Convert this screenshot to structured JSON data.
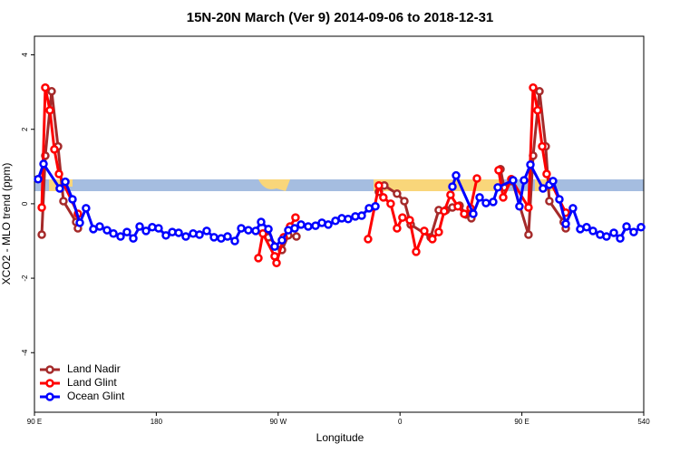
{
  "chart_data": {
    "type": "line",
    "title": "15N-20N March (Ver 9)   2014-09-06 to 2018-12-31",
    "x_label": "Longitude",
    "y_label": "XCO2 - MLO trend (ppm)",
    "xlim": [
      90,
      540
    ],
    "xticks": [
      {
        "value": 90,
        "label": "90 E"
      },
      180,
      {
        "value": 270,
        "label": "90 W"
      },
      {
        "value": 360,
        "label": "0"
      },
      {
        "value": 450,
        "label": "90 E"
      },
      540
    ],
    "ylim": [
      -5.6,
      4.5
    ],
    "yticks": [
      -4,
      -2,
      0,
      2,
      4
    ],
    "legend": "bottom-left",
    "series": [
      {
        "name": "Land Nadir",
        "color": "#a52a2a",
        "x": [
          95.4,
          98.0,
          102.7,
          107.4,
          111.4,
          120.8,
          122.1,
          null,
          262.8,
          272.8,
          277.5,
          283.5,
          null,
          344.4,
          348.4,
          357.8,
          363.2,
          367.9,
          382.6,
          388.6,
          394.0,
          398.7,
          404.0,
          408.7,
          412.7,
          null,
          434.2,
          436.8,
          442.9,
          454.9,
          458.3,
          463.0,
          467.6,
          470.3,
          480.9,
          482.4
        ],
        "values": [
          -0.83,
          1.29,
          3.02,
          1.54,
          0.07,
          -0.49,
          -0.66,
          null,
          -0.9,
          -1.24,
          -0.85,
          -0.88,
          null,
          0.32,
          0.49,
          0.27,
          0.07,
          -0.56,
          -0.9,
          -0.17,
          -0.17,
          -0.1,
          -0.05,
          -0.29,
          -0.39,
          null,
          0.93,
          0.44,
          0.61,
          -0.83,
          1.29,
          3.02,
          1.54,
          0.07,
          -0.49,
          -0.66
        ]
      },
      {
        "name": "Land Glint",
        "color": "#ff0000",
        "x": [
          95.4,
          98.0,
          101.4,
          104.7,
          108.1,
          122.1,
          null,
          255.4,
          258.7,
          267.4,
          268.8,
          274.1,
          278.8,
          282.8,
          null,
          336.4,
          344.4,
          347.7,
          353.1,
          357.8,
          361.8,
          367.2,
          371.9,
          377.9,
          383.9,
          388.6,
          392.6,
          397.3,
          402.7,
          407.4,
          412.1,
          416.8,
          null,
          432.8,
          436.2,
          442.2,
          454.9,
          458.3,
          461.6,
          465.0,
          468.3,
          482.4
        ],
        "values": [
          -0.1,
          3.12,
          2.51,
          1.46,
          0.8,
          -0.27,
          null,
          -1.46,
          -0.8,
          -1.41,
          -1.59,
          -0.9,
          -0.61,
          -0.37,
          null,
          -0.95,
          0.49,
          0.17,
          0,
          -0.66,
          -0.37,
          -0.44,
          -1.29,
          -0.73,
          -0.95,
          -0.76,
          -0.2,
          0.24,
          -0.07,
          -0.27,
          -0.12,
          0.68,
          null,
          0.9,
          0.17,
          0.66,
          -0.1,
          3.12,
          2.51,
          1.54,
          0.8,
          -0.24
        ]
      },
      {
        "name": "Ocean Glint",
        "color": "#0000ff",
        "x": [
          92.7,
          96.7,
          108.7,
          112.8,
          118.1,
          123.5,
          128.1,
          133.5,
          138.2,
          143.6,
          148.3,
          153.6,
          158.3,
          163.0,
          167.7,
          172.4,
          177.0,
          181.7,
          187.1,
          191.8,
          196.5,
          201.8,
          207.2,
          211.9,
          217.2,
          222.6,
          227.9,
          232.6,
          238.0,
          242.7,
          248.0,
          253.4,
          257.4,
          262.8,
          267.4,
          272.8,
          277.5,
          282.2,
          286.9,
          292.2,
          297.6,
          302.3,
          307.0,
          312.3,
          317.0,
          321.7,
          327.0,
          331.7,
          337.1,
          341.8,
          null,
          398.7,
          401.4,
          414.1,
          418.8,
          423.5,
          428.8,
          432.2,
          443.5,
          448.2,
          451.6,
          456.3,
          465.6,
          470.3,
          473.0,
          477.7,
          482.4,
          487.7,
          493.1,
          497.8,
          502.5,
          507.8,
          512.5,
          517.9,
          522.6,
          527.3,
          532.6,
          538.0
        ],
        "values": [
          0.66,
          1.07,
          0.41,
          0.59,
          0.12,
          -0.51,
          -0.12,
          -0.68,
          -0.61,
          -0.71,
          -0.8,
          -0.88,
          -0.76,
          -0.93,
          -0.61,
          -0.73,
          -0.63,
          -0.66,
          -0.85,
          -0.76,
          -0.78,
          -0.88,
          -0.8,
          -0.83,
          -0.73,
          -0.9,
          -0.93,
          -0.88,
          -1.0,
          -0.66,
          -0.71,
          -0.73,
          -0.49,
          -0.68,
          -1.15,
          -0.98,
          -0.71,
          -0.66,
          -0.56,
          -0.61,
          -0.59,
          -0.51,
          -0.56,
          -0.46,
          -0.39,
          -0.41,
          -0.34,
          -0.32,
          -0.12,
          -0.07,
          null,
          0.46,
          0.76,
          -0.27,
          0.17,
          0.02,
          0.05,
          0.44,
          0.63,
          -0.07,
          0.63,
          1.05,
          0.41,
          0.51,
          0.61,
          0.12,
          -0.54,
          -0.12,
          -0.68,
          -0.63,
          -0.73,
          -0.83,
          -0.88,
          -0.78,
          -0.93,
          -0.61,
          -0.76,
          -0.63
        ]
      }
    ]
  }
}
